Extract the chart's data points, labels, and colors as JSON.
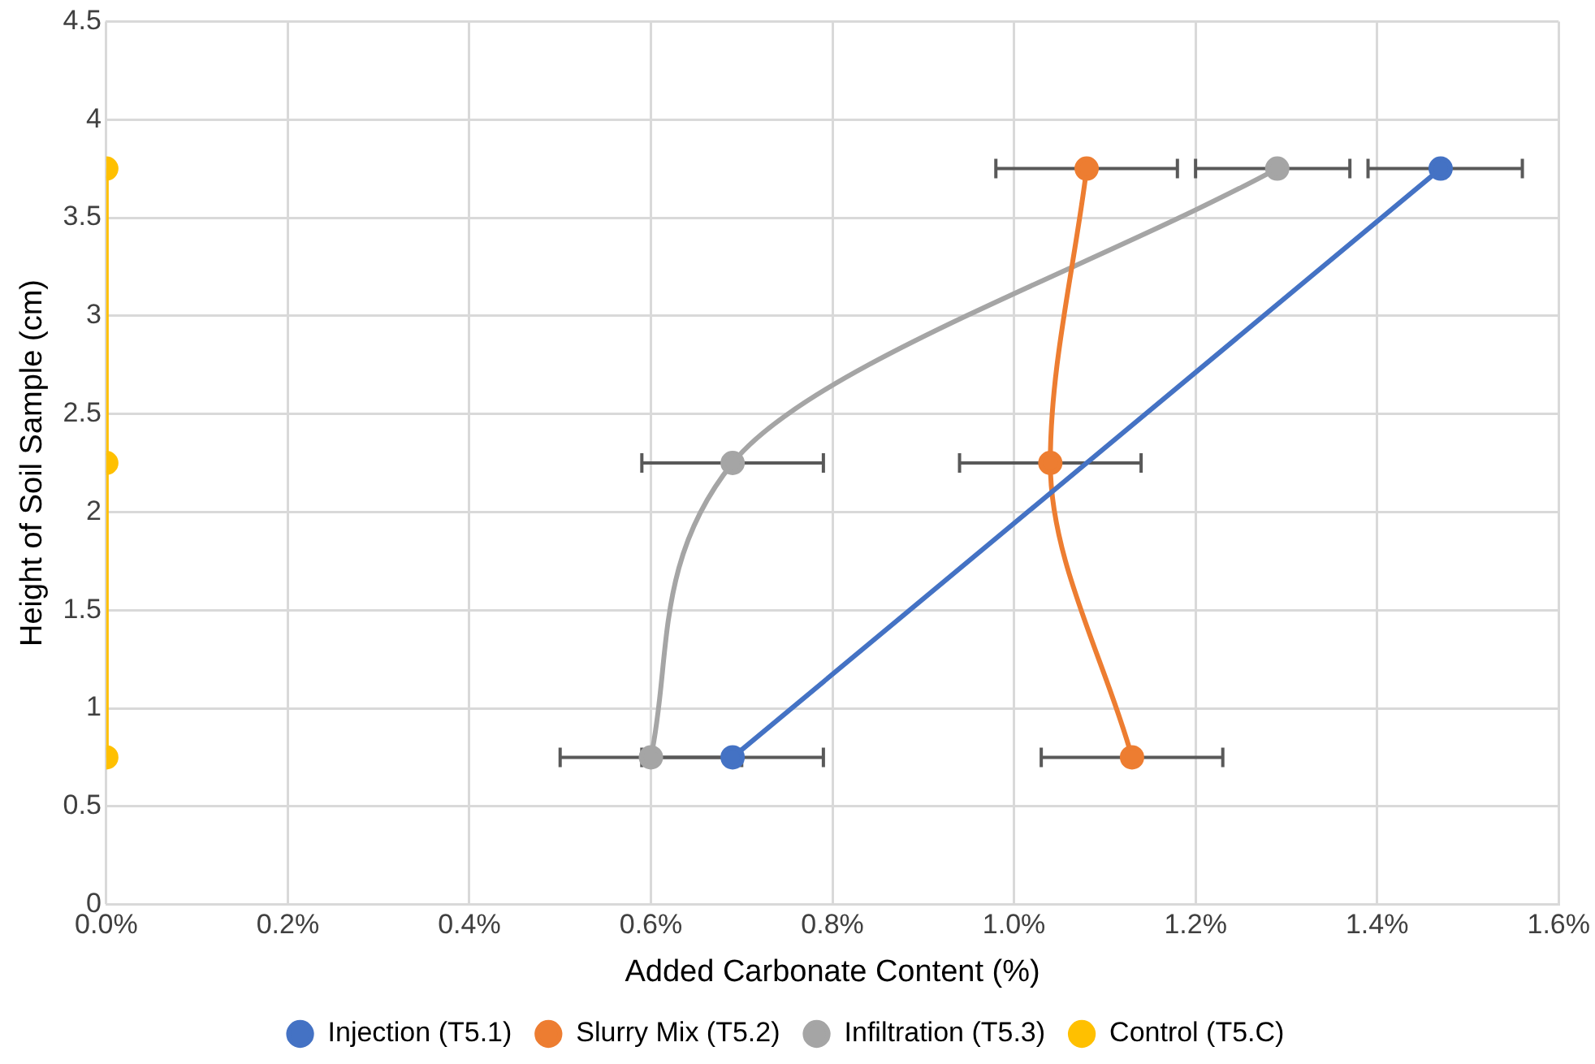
{
  "chart_data": {
    "type": "line",
    "orientation": "horizontal",
    "xlabel": "Added Carbonate Content (%)",
    "ylabel": "Height of Soil Sample (cm)",
    "x": [
      0.75,
      2.25,
      3.75
    ],
    "series": [
      {
        "name": "Injection (T5.1)",
        "color": "#4472c4",
        "values": [
          0.69,
          null,
          1.47
        ],
        "errors": [
          [
            0.59,
            0.79
          ],
          null,
          [
            1.39,
            1.56
          ]
        ]
      },
      {
        "name": "Slurry Mix (T5.2)",
        "color": "#ed7d31",
        "values": [
          1.13,
          1.04,
          1.08
        ],
        "errors": [
          [
            1.03,
            1.23
          ],
          [
            0.94,
            1.14
          ],
          [
            0.98,
            1.18
          ]
        ]
      },
      {
        "name": "Infiltration (T5.3)",
        "color": "#a5a5a5",
        "values": [
          0.6,
          0.69,
          1.29
        ],
        "errors": [
          [
            0.5,
            0.7
          ],
          [
            0.59,
            0.79
          ],
          [
            1.2,
            1.37
          ]
        ]
      },
      {
        "name": "Control (T5.C)",
        "color": "#ffc000",
        "values": [
          0,
          0,
          0
        ]
      }
    ],
    "xlim": [
      0,
      1.6
    ],
    "xticks": [
      {
        "value": 0,
        "label": "0.0%"
      },
      {
        "value": 0.2,
        "label": "0.2%"
      },
      {
        "value": 0.4,
        "label": "0.4%"
      },
      {
        "value": 0.6,
        "label": "0.6%"
      },
      {
        "value": 0.8,
        "label": "0.8%"
      },
      {
        "value": 1.0,
        "label": "1.0%"
      },
      {
        "value": 1.2,
        "label": "1.2%"
      },
      {
        "value": 1.4,
        "label": "1.4%"
      },
      {
        "value": 1.6,
        "label": "1.6%"
      }
    ],
    "ylim": [
      0,
      4.5
    ],
    "yticks": [
      0,
      0.5,
      1,
      1.5,
      2,
      2.5,
      3,
      3.5,
      4,
      4.5
    ],
    "grid": true,
    "legend": "bottom",
    "marker": "circle",
    "line_style": "solid"
  }
}
